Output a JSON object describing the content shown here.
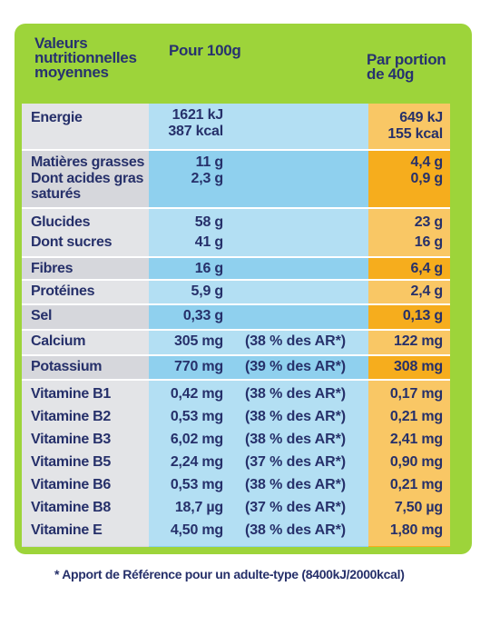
{
  "header": {
    "col1": "Valeurs nutritionnelles moyennes",
    "col2": "Pour 100g",
    "col3": "Par portion de 40g"
  },
  "rows": [
    {
      "label": "Energie",
      "v100": "1621 kJ",
      "v100b": "387 kcal",
      "ar": "",
      "portion": "649 kJ",
      "portionb": "155 kcal"
    },
    {
      "label": "Matières grasses",
      "v100": "11 g",
      "ar": "",
      "portion": "4,4 g"
    },
    {
      "label": "Dont acides gras saturés",
      "v100": "2,3 g",
      "ar": "",
      "portion": "0,9 g"
    },
    {
      "label": "Glucides",
      "v100": "58 g",
      "ar": "",
      "portion": "23 g"
    },
    {
      "label": "Dont sucres",
      "v100": "41 g",
      "ar": "",
      "portion": "16 g"
    },
    {
      "label": "Fibres",
      "v100": "16 g",
      "ar": "",
      "portion": "6,4 g"
    },
    {
      "label": "Protéines",
      "v100": "5,9 g",
      "ar": "",
      "portion": "2,4 g"
    },
    {
      "label": "Sel",
      "v100": "0,33 g",
      "ar": "",
      "portion": "0,13 g"
    },
    {
      "label": "Calcium",
      "v100": "305 mg",
      "ar": "(38 % des AR*)",
      "portion": "122 mg"
    },
    {
      "label": "Potassium",
      "v100": "770 mg",
      "ar": "(39 % des AR*)",
      "portion": "308 mg"
    },
    {
      "label": "Vitamine B1",
      "v100": "0,42 mg",
      "ar": "(38 % des AR*)",
      "portion": "0,17 mg"
    },
    {
      "label": "Vitamine B2",
      "v100": "0,53 mg",
      "ar": "(38 % des AR*)",
      "portion": "0,21 mg"
    },
    {
      "label": "Vitamine B3",
      "v100": "6,02 mg",
      "ar": "(38 % des AR*)",
      "portion": "2,41 mg"
    },
    {
      "label": "Vitamine B5",
      "v100": "2,24 mg",
      "ar": "(37 % des AR*)",
      "portion": "0,90 mg"
    },
    {
      "label": "Vitamine B6",
      "v100": "0,53 mg",
      "ar": "(38 % des AR*)",
      "portion": "0,21 mg"
    },
    {
      "label": "Vitamine B8",
      "v100": "18,7 µg",
      "ar": "(37 % des AR*)",
      "portion": "7,50 µg"
    },
    {
      "label": "Vitamine E",
      "v100": "4,50 mg",
      "ar": "(38 % des AR*)",
      "portion": "1,80 mg"
    }
  ],
  "footnote": "* Apport de Référence pour un adulte-type (8400kJ/2000kcal)",
  "colors": {
    "panel": "#9dd43a",
    "label_col": "#d6d7dc",
    "per100_col": "#8fd0ee",
    "portion_col": "#f6ad1d",
    "text": "#26306a"
  }
}
